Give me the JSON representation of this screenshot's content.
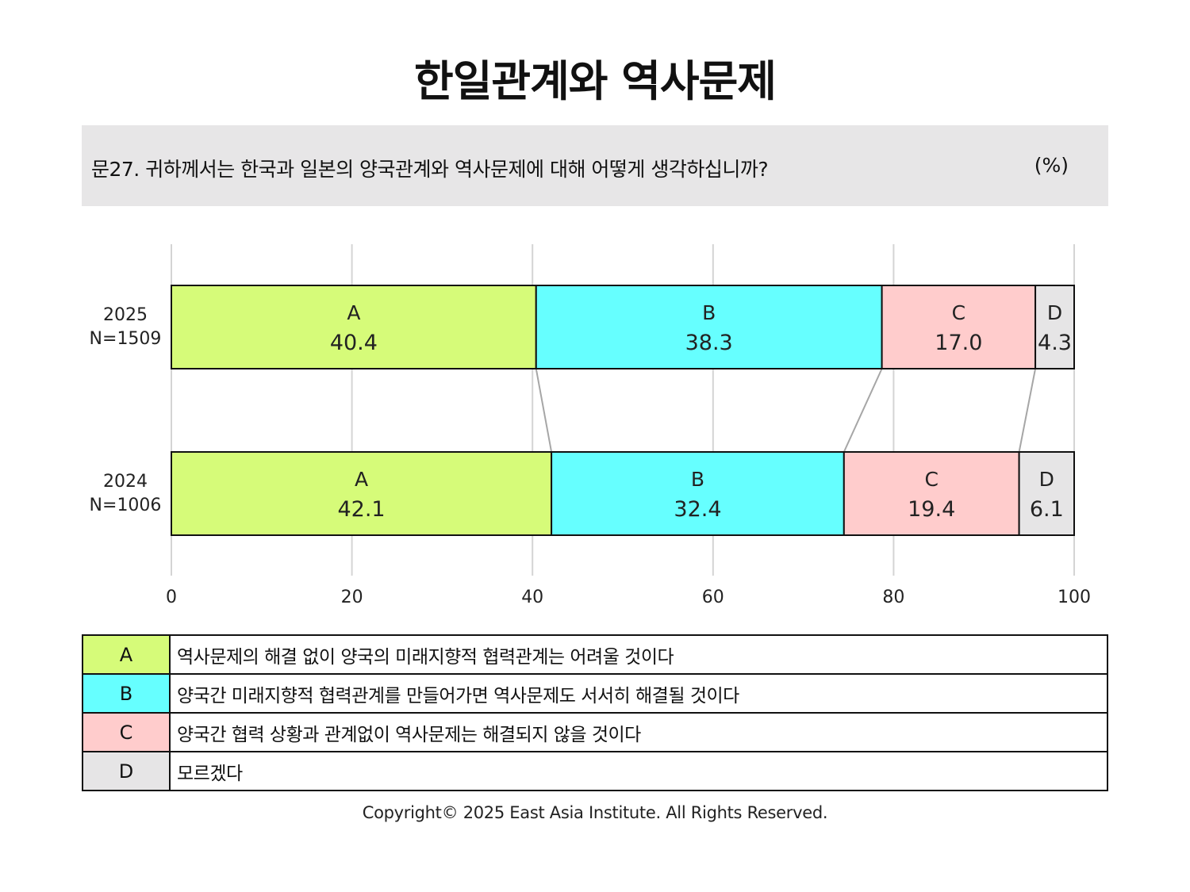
{
  "title": "한일관계와 역사문제",
  "question": "문27. 귀하께서는 한국과 일본의 양국관계와 역사문제에 대해 어떻게 생각하십니까?",
  "unit": "(%)",
  "colors": {
    "A": "#d6fb79",
    "B": "#66ffff",
    "C": "#ffcccc",
    "D": "#e6e5e6"
  },
  "chart_data": {
    "type": "bar",
    "orientation": "horizontal",
    "stacked": true,
    "xlim": [
      0,
      100
    ],
    "xticks": [
      "0",
      "20",
      "40",
      "60",
      "80",
      "100"
    ],
    "grid": true,
    "rows": [
      {
        "label_year": "2025",
        "label_n": "N=1509"
      },
      {
        "label_year": "2024",
        "label_n": "N=1006"
      }
    ],
    "series": [
      {
        "key": "A",
        "values": [
          40.4,
          42.1
        ],
        "labels": [
          "40.4",
          "42.1"
        ]
      },
      {
        "key": "B",
        "values": [
          38.3,
          32.4
        ],
        "labels": [
          "38.3",
          "32.4"
        ]
      },
      {
        "key": "C",
        "values": [
          17.0,
          19.4
        ],
        "labels": [
          "17.0",
          "19.4"
        ]
      },
      {
        "key": "D",
        "values": [
          4.3,
          6.1
        ],
        "labels": [
          "4.3",
          "6.1"
        ]
      }
    ]
  },
  "legend": [
    {
      "key": "A",
      "text": "역사문제의 해결 없이 양국의 미래지향적 협력관계는 어려울 것이다"
    },
    {
      "key": "B",
      "text": "양국간 미래지향적 협력관계를 만들어가면 역사문제도 서서히 해결될 것이다"
    },
    {
      "key": "C",
      "text": "양국간 협력 상황과 관계없이 역사문제는 해결되지 않을 것이다"
    },
    {
      "key": "D",
      "text": "모르겠다"
    }
  ],
  "copyright": "Copyright© 2025 East Asia Institute. All Rights Reserved."
}
